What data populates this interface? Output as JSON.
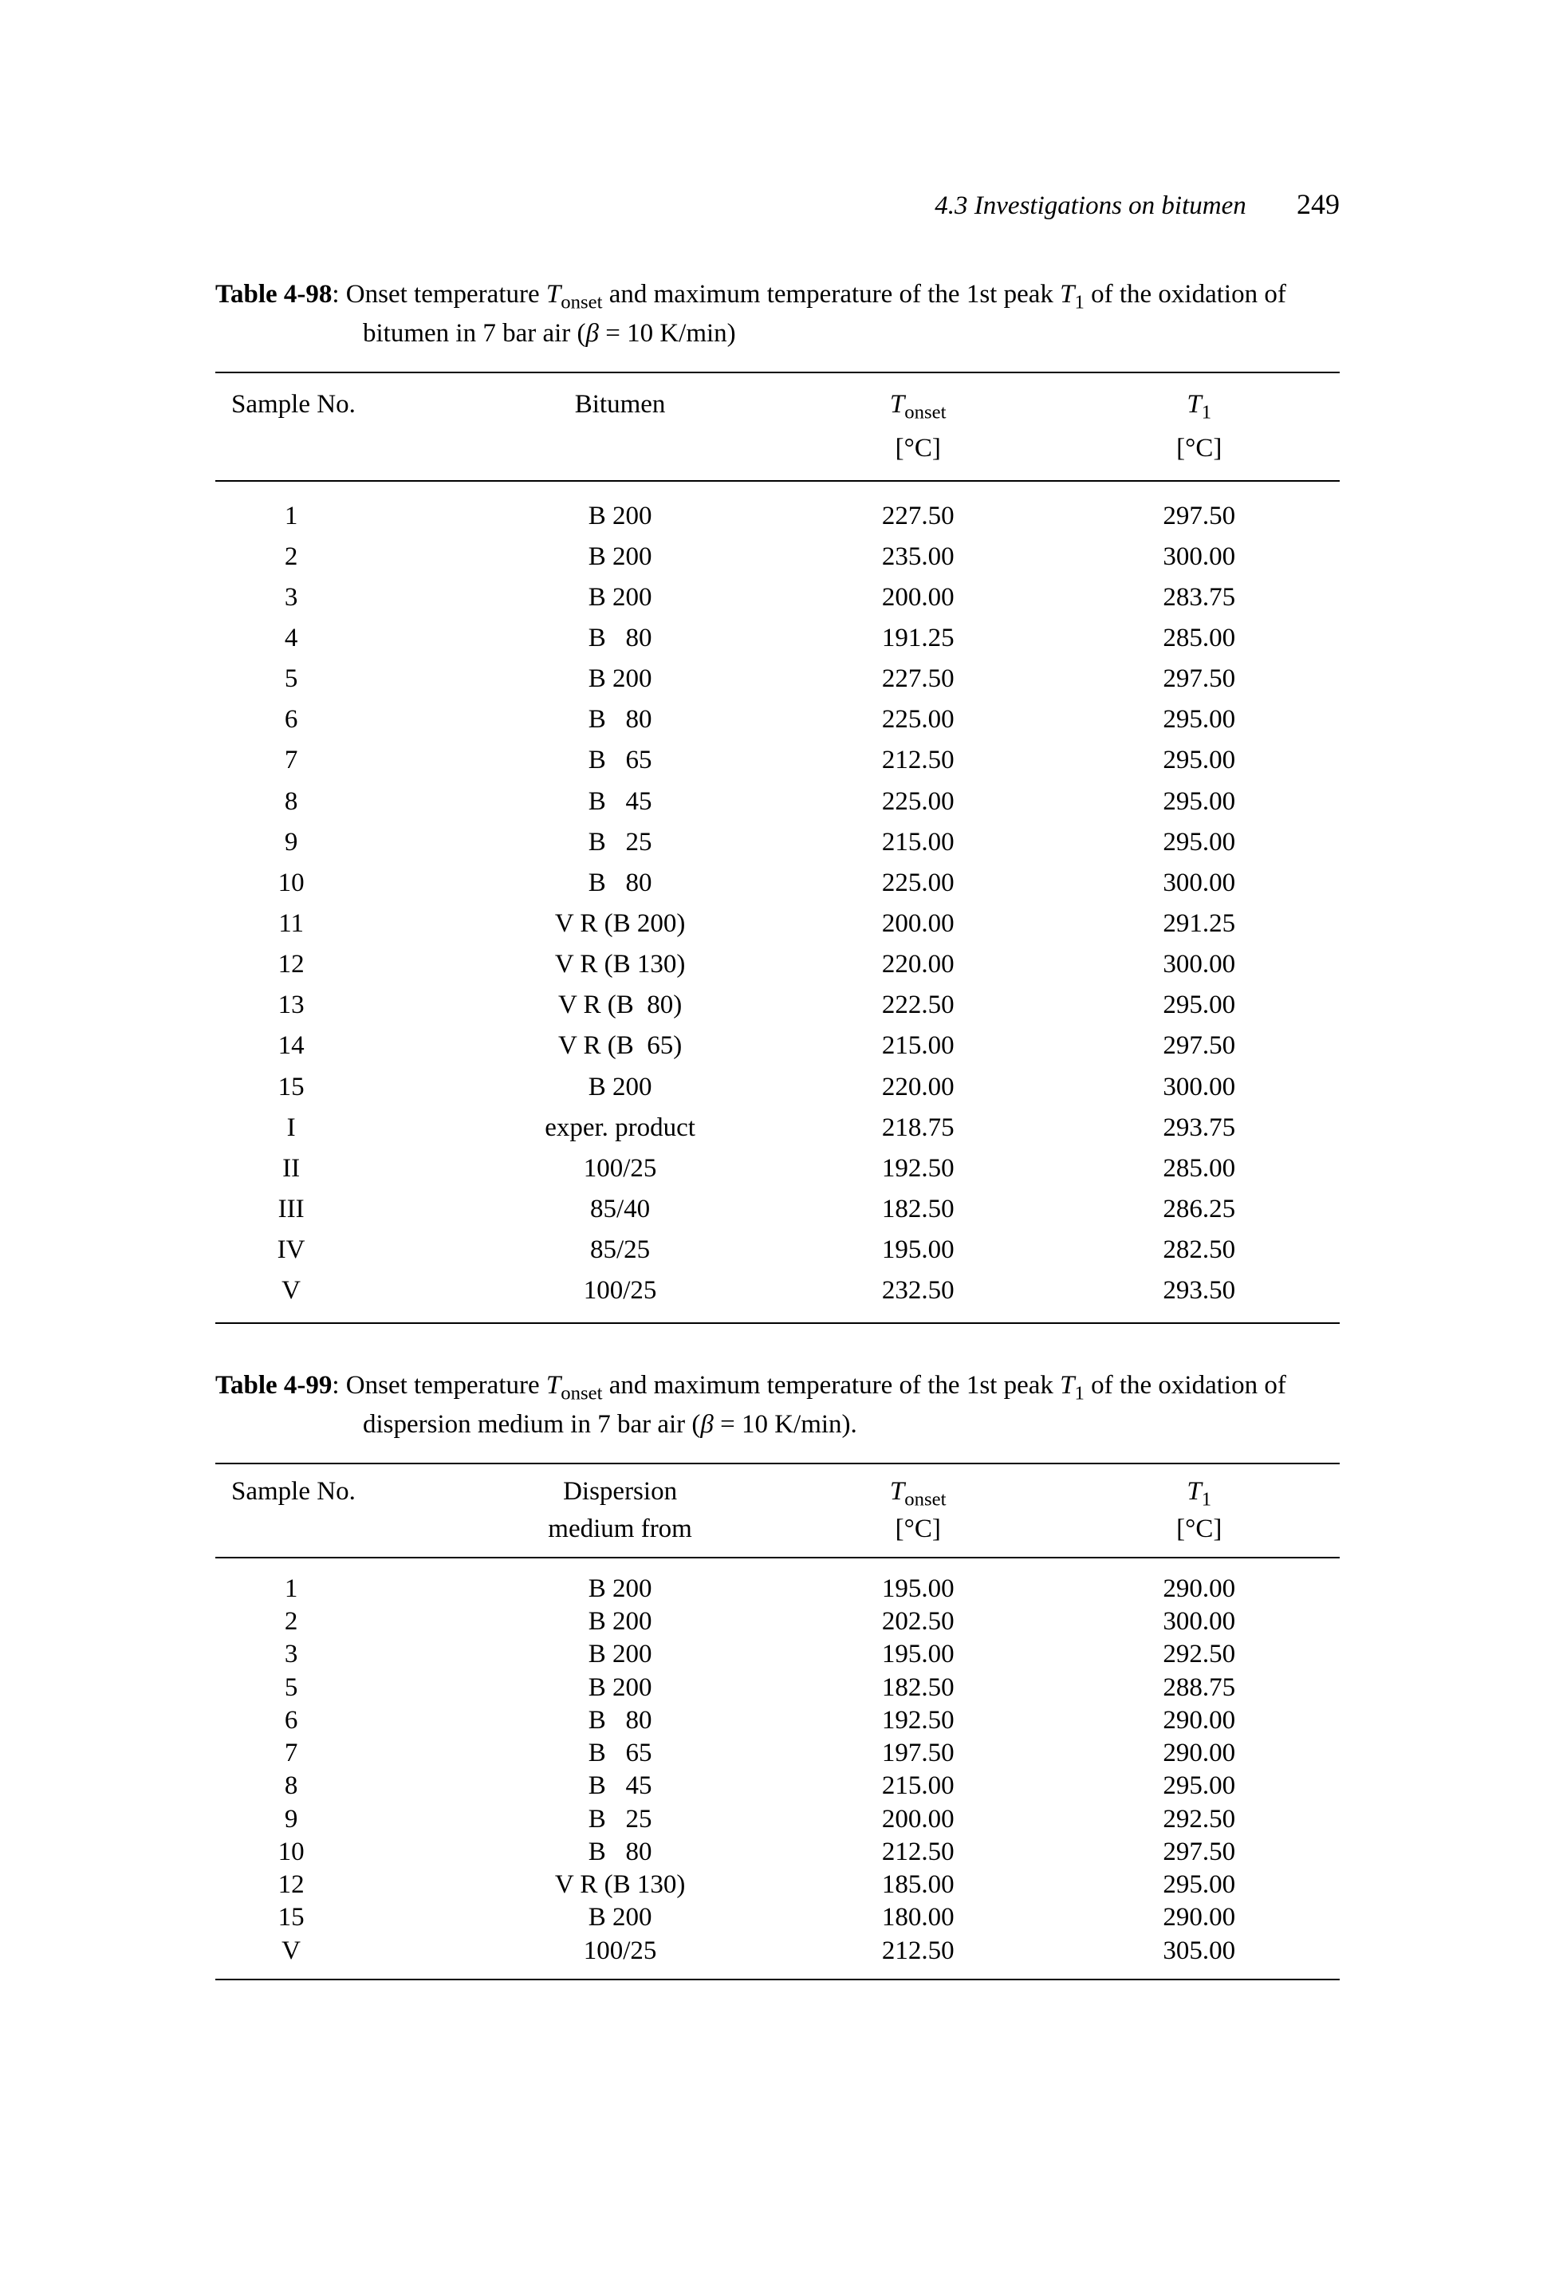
{
  "header": {
    "section": "4.3  Investigations on bitumen",
    "page": "249"
  },
  "table98": {
    "label": "Table 4-98",
    "caption_line1": ": Onset temperature ",
    "caption_sym1": "T",
    "caption_sub1": "onset",
    "caption_mid1": " and maximum temperature of the 1st peak ",
    "caption_sym2": "T",
    "caption_sub2": "1",
    "caption_mid2": " of the oxidation of",
    "caption_line2a": "bitumen in 7 bar air (",
    "caption_beta": "β",
    "caption_line2b": " = 10 K/min)",
    "head_sample": "Sample No.",
    "head_bitumen": "Bitumen",
    "head_tonset_sym": "T",
    "head_tonset_sub": "onset",
    "head_t1_sym": "T",
    "head_t1_sub": "1",
    "unit": "[°C]",
    "rows": [
      {
        "n": "1",
        "b": "B 200",
        "to": "227.50",
        "t1": "297.50"
      },
      {
        "n": "2",
        "b": "B 200",
        "to": "235.00",
        "t1": "300.00"
      },
      {
        "n": "3",
        "b": "B 200",
        "to": "200.00",
        "t1": "283.75"
      },
      {
        "n": "4",
        "b": "B   80",
        "to": "191.25",
        "t1": "285.00"
      },
      {
        "n": "5",
        "b": "B 200",
        "to": "227.50",
        "t1": "297.50"
      },
      {
        "n": "6",
        "b": "B   80",
        "to": "225.00",
        "t1": "295.00"
      },
      {
        "n": "7",
        "b": "B   65",
        "to": "212.50",
        "t1": "295.00"
      },
      {
        "n": "8",
        "b": "B   45",
        "to": "225.00",
        "t1": "295.00"
      },
      {
        "n": "9",
        "b": "B   25",
        "to": "215.00",
        "t1": "295.00"
      },
      {
        "n": "10",
        "b": "B   80",
        "to": "225.00",
        "t1": "300.00"
      },
      {
        "n": "11",
        "b": "V R (B 200)",
        "to": "200.00",
        "t1": "291.25"
      },
      {
        "n": "12",
        "b": "V R (B 130)",
        "to": "220.00",
        "t1": "300.00"
      },
      {
        "n": "13",
        "b": "V R (B  80)",
        "to": "222.50",
        "t1": "295.00"
      },
      {
        "n": "14",
        "b": "V R (B  65)",
        "to": "215.00",
        "t1": "297.50"
      },
      {
        "n": "15",
        "b": "B 200",
        "to": "220.00",
        "t1": "300.00"
      },
      {
        "n": "I",
        "b": "exper. product",
        "to": "218.75",
        "t1": "293.75"
      },
      {
        "n": "II",
        "b": "100/25",
        "to": "192.50",
        "t1": "285.00"
      },
      {
        "n": "III",
        "b": "85/40",
        "to": "182.50",
        "t1": "286.25"
      },
      {
        "n": "IV",
        "b": "85/25",
        "to": "195.00",
        "t1": "282.50"
      },
      {
        "n": "V",
        "b": "100/25",
        "to": "232.50",
        "t1": "293.50"
      }
    ]
  },
  "table99": {
    "label": "Table 4-99",
    "caption_line1": ": Onset temperature ",
    "caption_sym1": "T",
    "caption_sub1": "onset",
    "caption_mid1": " and maximum temperature of the 1st peak ",
    "caption_sym2": "T",
    "caption_sub2": "1",
    "caption_mid2": " of the oxidation of",
    "caption_line2a": "dispersion medium in 7 bar air (",
    "caption_beta": "β",
    "caption_line2b": " = 10 K/min).",
    "head_sample": "Sample No.",
    "head_bitumen1": "Dispersion",
    "head_bitumen2": "medium from",
    "head_tonset_sym": "T",
    "head_tonset_sub": "onset",
    "head_t1_sym": "T",
    "head_t1_sub": "1",
    "unit": "[°C]",
    "rows": [
      {
        "n": "1",
        "b": "B 200",
        "to": "195.00",
        "t1": "290.00"
      },
      {
        "n": "2",
        "b": "B 200",
        "to": "202.50",
        "t1": "300.00"
      },
      {
        "n": "3",
        "b": "B 200",
        "to": "195.00",
        "t1": "292.50"
      },
      {
        "n": "5",
        "b": "B 200",
        "to": "182.50",
        "t1": "288.75"
      },
      {
        "n": "6",
        "b": "B   80",
        "to": "192.50",
        "t1": "290.00"
      },
      {
        "n": "7",
        "b": "B   65",
        "to": "197.50",
        "t1": "290.00"
      },
      {
        "n": "8",
        "b": "B   45",
        "to": "215.00",
        "t1": "295.00"
      },
      {
        "n": "9",
        "b": "B   25",
        "to": "200.00",
        "t1": "292.50"
      },
      {
        "n": "10",
        "b": "B   80",
        "to": "212.50",
        "t1": "297.50"
      },
      {
        "n": "12",
        "b": "V R (B 130)",
        "to": "185.00",
        "t1": "295.00"
      },
      {
        "n": "15",
        "b": "B 200",
        "to": "180.00",
        "t1": "290.00"
      },
      {
        "n": "V",
        "b": "100/25",
        "to": "212.50",
        "t1": "305.00"
      }
    ]
  }
}
